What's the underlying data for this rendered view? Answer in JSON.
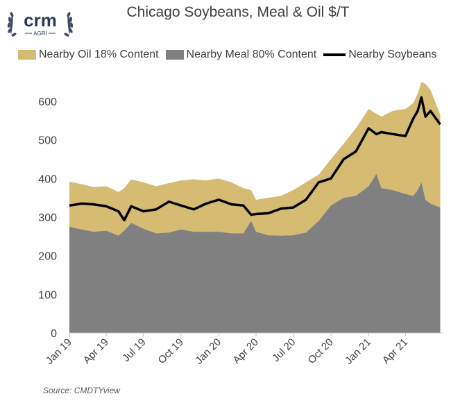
{
  "logo": {
    "text": "crm",
    "subtext": "AGRI",
    "color": "#2b3a55"
  },
  "chart_data": {
    "type": "area",
    "title": "Chicago Soybeans, Meal & Oil $/T",
    "xlabel": "",
    "ylabel": "",
    "ylim": [
      0,
      650
    ],
    "yticks": [
      0,
      100,
      200,
      300,
      400,
      500,
      600
    ],
    "x_tick_labels": [
      "Jan 19",
      "Apr 19",
      "Jul 19",
      "Oct 19",
      "Jan 20",
      "Apr 20",
      "Jul 20",
      "Oct 20",
      "Jan 21",
      "Apr 21"
    ],
    "x_dates": [
      "2019-01-01",
      "2019-02-01",
      "2019-03-01",
      "2019-04-01",
      "2019-05-01",
      "2019-05-15",
      "2019-06-01",
      "2019-07-01",
      "2019-08-01",
      "2019-09-01",
      "2019-10-01",
      "2019-11-01",
      "2019-12-01",
      "2020-01-01",
      "2020-02-01",
      "2020-03-01",
      "2020-03-20",
      "2020-04-01",
      "2020-05-01",
      "2020-06-01",
      "2020-07-01",
      "2020-08-01",
      "2020-09-01",
      "2020-10-01",
      "2020-11-01",
      "2020-12-01",
      "2021-01-01",
      "2021-01-20",
      "2021-02-01",
      "2021-03-01",
      "2021-04-01",
      "2021-04-20",
      "2021-05-01",
      "2021-05-10",
      "2021-05-20",
      "2021-06-01",
      "2021-06-25"
    ],
    "grid": false,
    "legend_position": "top",
    "colors": {
      "oil": "#d6bb73",
      "meal": "#808080",
      "soybeans": "#000000"
    },
    "series": [
      {
        "name": "Nearby Meal 80% Content",
        "kind": "area",
        "values": [
          275,
          268,
          262,
          265,
          252,
          265,
          285,
          270,
          258,
          260,
          268,
          262,
          262,
          262,
          258,
          258,
          290,
          262,
          253,
          252,
          253,
          260,
          290,
          330,
          350,
          355,
          380,
          412,
          375,
          370,
          360,
          355,
          370,
          390,
          345,
          335,
          325
        ]
      },
      {
        "name": "Nearby Oil 18% Content",
        "kind": "area_stacked_total",
        "values": [
          392,
          385,
          378,
          380,
          365,
          375,
          398,
          390,
          380,
          388,
          395,
          398,
          395,
          400,
          390,
          375,
          370,
          345,
          350,
          355,
          370,
          390,
          410,
          450,
          490,
          530,
          580,
          568,
          560,
          575,
          580,
          595,
          620,
          650,
          645,
          630,
          565
        ]
      },
      {
        "name": "Nearby Soybeans",
        "kind": "line",
        "values": [
          330,
          335,
          333,
          328,
          315,
          292,
          328,
          315,
          320,
          340,
          330,
          320,
          335,
          345,
          333,
          330,
          306,
          308,
          310,
          322,
          325,
          345,
          390,
          400,
          450,
          470,
          530,
          515,
          520,
          515,
          510,
          555,
          575,
          610,
          560,
          575,
          540
        ]
      }
    ],
    "source": "Source: CMDTYview"
  }
}
